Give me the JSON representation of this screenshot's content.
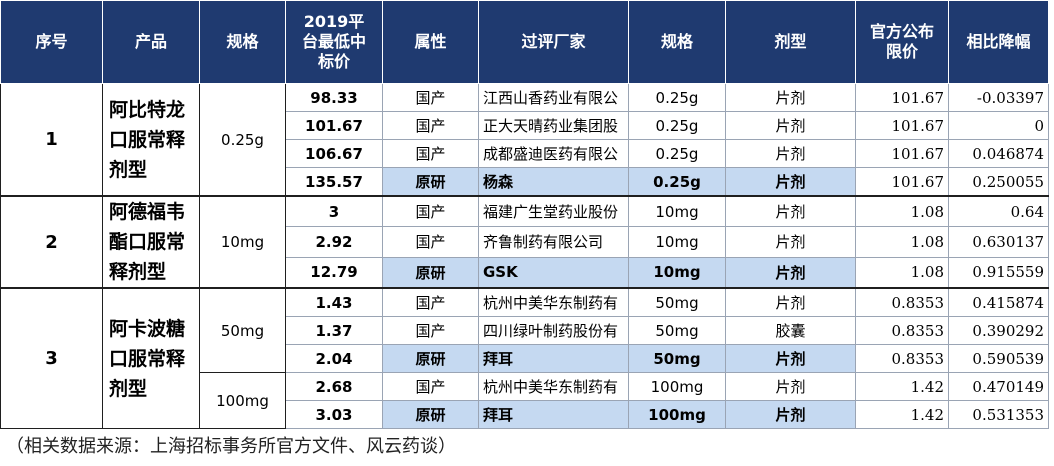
{
  "headers": {
    "seq": "序号",
    "product": "产品",
    "spec1": "规格",
    "price2019": "2019平台最低中标价",
    "attr": "属性",
    "manufacturer": "过评厂家",
    "spec2": "规格",
    "form": "剂型",
    "official": "官方公布限价",
    "drop": "相比降幅"
  },
  "groups": [
    {
      "seq": "1",
      "product": "阿比特龙口服常释剂型",
      "rows": [
        {
          "spec1": "0.25g",
          "price": "98.33",
          "attr": "国产",
          "mfr": "江西山香药业有限公",
          "spec2": "0.25g",
          "form": "片剂",
          "official": "101.67",
          "drop": "-0.03397"
        },
        {
          "price": "101.67",
          "attr": "国产",
          "mfr": "正大天晴药业集团股",
          "spec2": "0.25g",
          "form": "片剂",
          "official": "101.67",
          "drop": "0"
        },
        {
          "price": "106.67",
          "attr": "国产",
          "mfr": "成都盛迪医药有限公",
          "spec2": "0.25g",
          "form": "片剂",
          "official": "101.67",
          "drop": "0.046874"
        },
        {
          "price": "135.57",
          "attr": "原研",
          "mfr": "杨森",
          "spec2": "0.25g",
          "form": "片剂",
          "official": "101.67",
          "drop": "0.250055"
        }
      ]
    },
    {
      "seq": "2",
      "product": "阿德福韦酯口服常释剂型",
      "rows": [
        {
          "spec1": "10mg",
          "price": "3",
          "attr": "国产",
          "mfr": "福建广生堂药业股份",
          "spec2": "10mg",
          "form": "片剂",
          "official": "1.08",
          "drop": "0.64"
        },
        {
          "price": "2.92",
          "attr": "国产",
          "mfr": "齐鲁制药有限公司",
          "spec2": "10mg",
          "form": "片剂",
          "official": "1.08",
          "drop": "0.630137"
        },
        {
          "price": "12.79",
          "attr": "原研",
          "mfr": "GSK",
          "spec2": "10mg",
          "form": "片剂",
          "official": "1.08",
          "drop": "0.915559"
        }
      ]
    },
    {
      "seq": "3",
      "product": "阿卡波糖口服常释剂型",
      "rows": [
        {
          "spec1": "50mg",
          "price": "1.43",
          "attr": "国产",
          "mfr": "杭州中美华东制药有",
          "spec2": "50mg",
          "form": "片剂",
          "official": "0.8353",
          "drop": "0.415874"
        },
        {
          "price": "1.37",
          "attr": "国产",
          "mfr": "四川绿叶制药股份有",
          "spec2": "50mg",
          "form": "胶囊",
          "official": "0.8353",
          "drop": "0.390292"
        },
        {
          "price": "2.04",
          "attr": "原研",
          "mfr": "拜耳",
          "spec2": "50mg",
          "form": "片剂",
          "official": "0.8353",
          "drop": "0.590539"
        },
        {
          "spec1": "100mg",
          "price": "2.68",
          "attr": "国产",
          "mfr": "杭州中美华东制药有",
          "spec2": "100mg",
          "form": "片剂",
          "official": "1.42",
          "drop": "0.470149"
        },
        {
          "price": "3.03",
          "attr": "原研",
          "mfr": "拜耳",
          "spec2": "100mg",
          "form": "片剂",
          "official": "1.42",
          "drop": "0.531353"
        }
      ]
    }
  ],
  "source_note": "（相关数据来源：上海招标事务所官方文件、风云药谈）"
}
